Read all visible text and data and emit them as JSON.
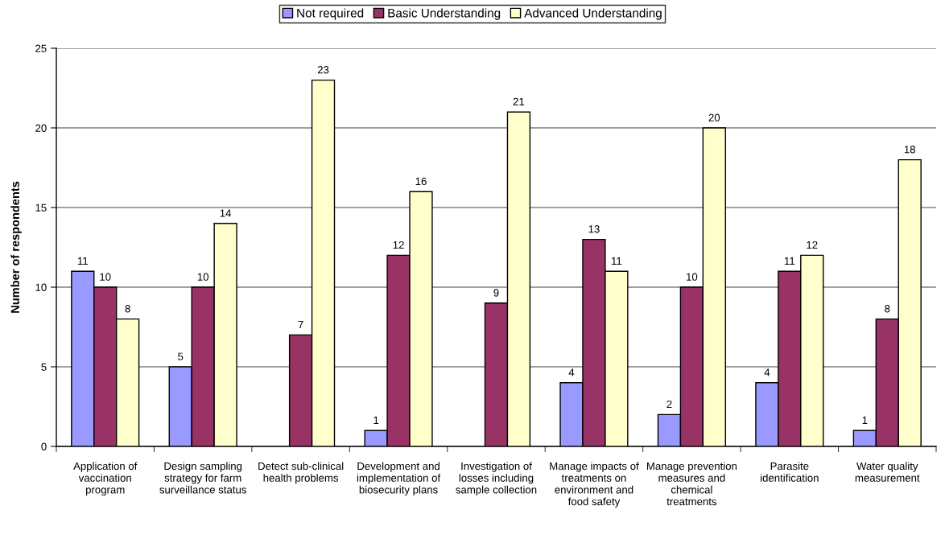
{
  "chart_data": {
    "type": "bar",
    "ylabel": "Number of respondents",
    "categories": [
      "Application of vaccination program",
      "Design sampling strategy for farm surveillance status",
      "Detect sub-clinical health problems",
      "Development and implementation of biosecurity plans",
      "Investigation of losses including sample collection",
      "Manage impacts of treatments on environment and food safety",
      "Manage prevention measures and chemical treatments",
      "Parasite identification",
      "Water quality measurement"
    ],
    "series": [
      {
        "name": "Not required",
        "color": "#9999ff",
        "values": [
          11,
          5,
          null,
          1,
          null,
          4,
          2,
          4,
          1
        ]
      },
      {
        "name": "Basic Understanding",
        "color": "#993366",
        "values": [
          10,
          10,
          7,
          12,
          9,
          13,
          10,
          11,
          8
        ]
      },
      {
        "name": "Advanced Understanding",
        "color": "#ffffcc",
        "values": [
          8,
          14,
          23,
          16,
          21,
          11,
          20,
          12,
          18
        ]
      }
    ],
    "ylim": [
      0,
      25
    ],
    "yticks": [
      0,
      5,
      10,
      15,
      20,
      25
    ],
    "grid": "y",
    "legend": "top",
    "data_labels": true
  }
}
